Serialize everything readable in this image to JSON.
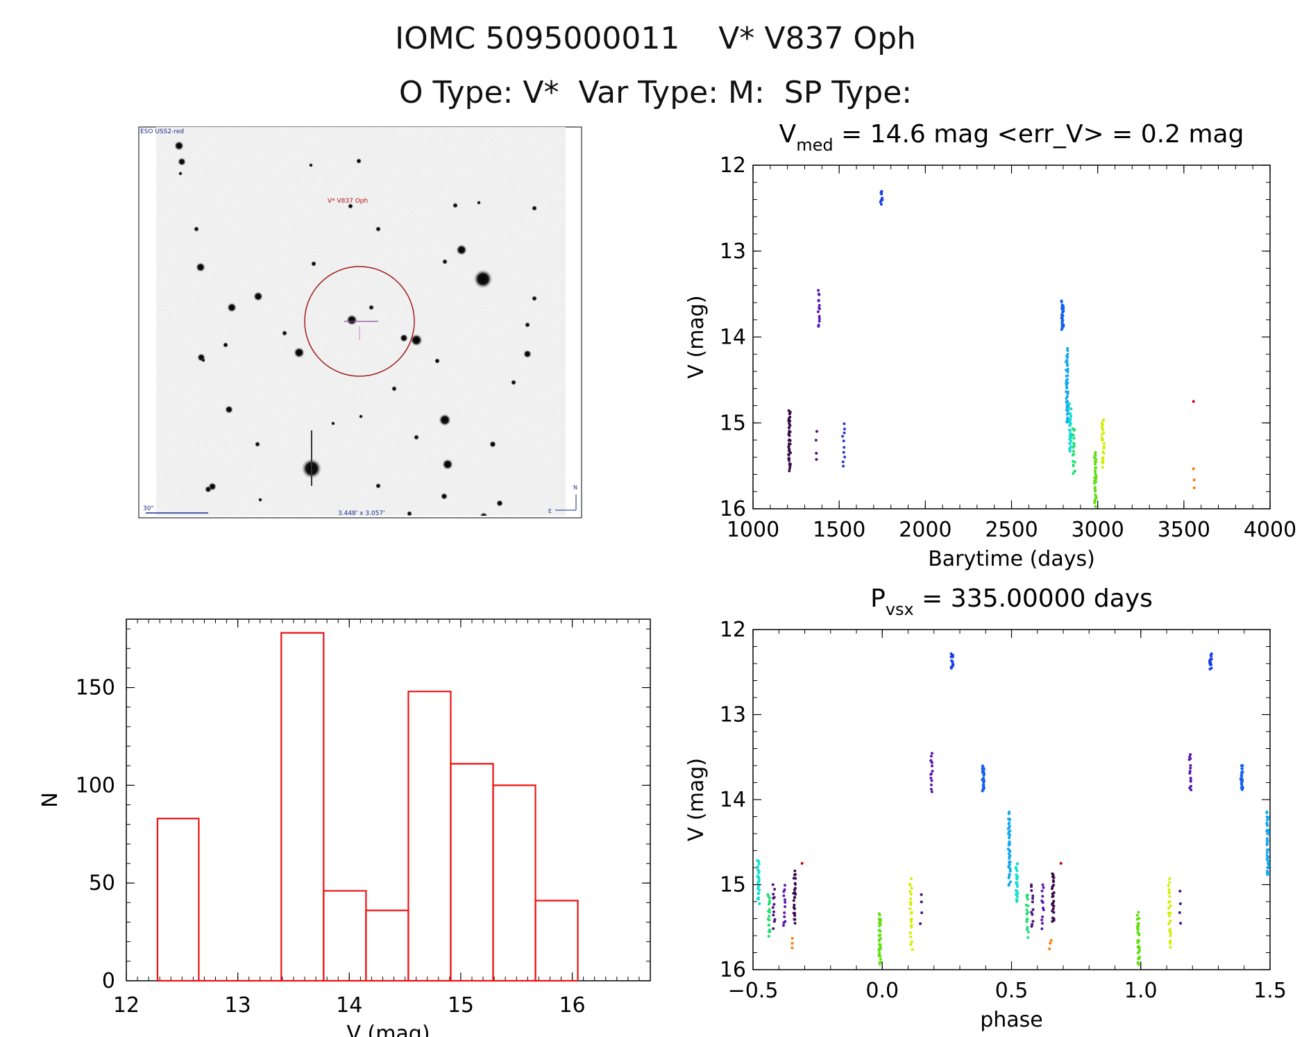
{
  "header": {
    "line1": "IOMC 5095000011    V* V837 Oph",
    "line2": "O Type: V*  Var Type: M:  SP Type:"
  },
  "finder": {
    "survey_label": "ESO USS2-red",
    "object_label": "V* V837 Oph",
    "scale_label": "30\"",
    "fov_label": "3.448' x 3.057'",
    "north_label": "N",
    "east_label": "E"
  },
  "chart_data": [
    {
      "id": "lightcurve",
      "type": "scatter",
      "title": "V_med = 14.6 mag <err_V> = 0.2 mag",
      "title_main": "V",
      "title_sub": "med",
      "title_rest": " = 14.6 mag <err_V> = 0.2 mag",
      "xlabel": "Barytime (days)",
      "ylabel": "V (mag)",
      "xlim": [
        1000,
        4000
      ],
      "ylim": [
        16,
        12
      ],
      "xticks": [
        1000,
        1500,
        2000,
        2500,
        3000,
        3500,
        4000
      ],
      "yticks": [
        12,
        13,
        14,
        15,
        16
      ],
      "groups": [
        {
          "x": 1210,
          "y_min": 14.85,
          "y_max": 15.55,
          "n": 40,
          "color": "#3a0a4a"
        },
        {
          "x": 1365,
          "y_min": 15.1,
          "y_max": 15.45,
          "n": 4,
          "color": "#4a1180"
        },
        {
          "x": 1380,
          "y_min": 13.45,
          "y_max": 13.9,
          "n": 14,
          "color": "#5b1ab0"
        },
        {
          "x": 1525,
          "y_min": 15.0,
          "y_max": 15.5,
          "n": 10,
          "color": "#2a3ad0"
        },
        {
          "x": 1745,
          "y_min": 12.3,
          "y_max": 12.45,
          "n": 12,
          "color": "#1a40e8"
        },
        {
          "x": 2795,
          "y_min": 13.6,
          "y_max": 13.9,
          "n": 30,
          "color": "#1560f0"
        },
        {
          "x": 2820,
          "y_min": 14.15,
          "y_max": 15.0,
          "n": 45,
          "color": "#13a8f0"
        },
        {
          "x": 2840,
          "y_min": 14.8,
          "y_max": 15.35,
          "n": 30,
          "color": "#11e0d0"
        },
        {
          "x": 2860,
          "y_min": 15.05,
          "y_max": 15.6,
          "n": 20,
          "color": "#20e070"
        },
        {
          "x": 2985,
          "y_min": 15.35,
          "y_max": 15.95,
          "n": 35,
          "color": "#60e010"
        },
        {
          "x": 3030,
          "y_min": 14.95,
          "y_max": 15.5,
          "n": 25,
          "color": "#d0f000"
        },
        {
          "x": 3555,
          "y_min": 15.55,
          "y_max": 15.75,
          "n": 3,
          "color": "#ff7a00"
        },
        {
          "x": 3560,
          "y_min": 14.75,
          "y_max": 14.77,
          "n": 1,
          "color": "#d00000"
        }
      ]
    },
    {
      "id": "histogram",
      "type": "bar",
      "xlabel": "V (mag)",
      "ylabel": "N",
      "xlim": [
        12,
        16.7
      ],
      "ylim": [
        0,
        185
      ],
      "xticks": [
        12,
        13,
        14,
        15,
        16
      ],
      "yticks": [
        0,
        50,
        100,
        150
      ],
      "bin_edges": [
        12.28,
        12.65,
        13.02,
        13.39,
        13.77,
        14.15,
        14.53,
        14.91,
        15.29,
        15.67,
        16.05
      ],
      "values": [
        83,
        0,
        0,
        178,
        46,
        36,
        148,
        111,
        100,
        41
      ],
      "color": "#ee1111"
    },
    {
      "id": "phased",
      "type": "scatter",
      "title": "P_vsx = 335.00000 days",
      "title_main": "P",
      "title_sub": "vsx",
      "title_rest": " = 335.00000 days",
      "xlabel": "phase",
      "ylabel": "V (mag)",
      "xlim": [
        -0.5,
        1.5
      ],
      "ylim": [
        16,
        12
      ],
      "xticks": [
        -0.5,
        0.0,
        0.5,
        1.0,
        1.5
      ],
      "xtick_labels": [
        "−0.5",
        "0.0",
        "0.5",
        "1.0",
        "1.5"
      ],
      "yticks": [
        12,
        13,
        14,
        15,
        16
      ],
      "groups": [
        {
          "x": -0.48,
          "y_min": 14.7,
          "y_max": 15.2,
          "n": 25,
          "color": "#11e0d0"
        },
        {
          "x": -0.44,
          "y_min": 15.1,
          "y_max": 15.6,
          "n": 18,
          "color": "#20e070"
        },
        {
          "x": -0.42,
          "y_min": 15.0,
          "y_max": 15.5,
          "n": 12,
          "color": "#4a1180"
        },
        {
          "x": -0.38,
          "y_min": 15.0,
          "y_max": 15.5,
          "n": 12,
          "color": "#5b1ab0"
        },
        {
          "x": -0.35,
          "y_min": 15.65,
          "y_max": 15.75,
          "n": 3,
          "color": "#ff7a00"
        },
        {
          "x": -0.34,
          "y_min": 14.85,
          "y_max": 15.45,
          "n": 25,
          "color": "#3a0a4a"
        },
        {
          "x": -0.31,
          "y_min": 14.75,
          "y_max": 14.8,
          "n": 1,
          "color": "#d00000"
        },
        {
          "x": -0.01,
          "y_min": 15.35,
          "y_max": 15.95,
          "n": 35,
          "color": "#60e010"
        },
        {
          "x": 0.11,
          "y_min": 14.95,
          "y_max": 15.75,
          "n": 25,
          "color": "#d0f000"
        },
        {
          "x": 0.15,
          "y_min": 15.1,
          "y_max": 15.45,
          "n": 4,
          "color": "#4a1180"
        },
        {
          "x": 0.19,
          "y_min": 13.45,
          "y_max": 13.9,
          "n": 14,
          "color": "#5b1ab0"
        },
        {
          "x": 0.27,
          "y_min": 12.3,
          "y_max": 12.45,
          "n": 14,
          "color": "#1a40e8"
        },
        {
          "x": 0.39,
          "y_min": 13.6,
          "y_max": 13.9,
          "n": 30,
          "color": "#1560f0"
        },
        {
          "x": 0.49,
          "y_min": 14.15,
          "y_max": 15.0,
          "n": 45,
          "color": "#13a8f0"
        },
        {
          "x": 0.52,
          "y_min": 14.75,
          "y_max": 15.2,
          "n": 25,
          "color": "#11e0d0"
        },
        {
          "x": 0.56,
          "y_min": 15.1,
          "y_max": 15.6,
          "n": 18,
          "color": "#20e070"
        },
        {
          "x": 0.58,
          "y_min": 15.0,
          "y_max": 15.5,
          "n": 12,
          "color": "#4a1180"
        },
        {
          "x": 0.62,
          "y_min": 15.0,
          "y_max": 15.5,
          "n": 12,
          "color": "#5b1ab0"
        },
        {
          "x": 0.65,
          "y_min": 15.65,
          "y_max": 15.75,
          "n": 3,
          "color": "#ff7a00"
        },
        {
          "x": 0.66,
          "y_min": 14.85,
          "y_max": 15.45,
          "n": 25,
          "color": "#3a0a4a"
        },
        {
          "x": 0.69,
          "y_min": 14.75,
          "y_max": 14.8,
          "n": 1,
          "color": "#d00000"
        },
        {
          "x": 0.99,
          "y_min": 15.35,
          "y_max": 15.95,
          "n": 35,
          "color": "#60e010"
        },
        {
          "x": 1.11,
          "y_min": 14.95,
          "y_max": 15.75,
          "n": 25,
          "color": "#d0f000"
        },
        {
          "x": 1.15,
          "y_min": 15.1,
          "y_max": 15.45,
          "n": 4,
          "color": "#4a1180"
        },
        {
          "x": 1.19,
          "y_min": 13.45,
          "y_max": 13.9,
          "n": 14,
          "color": "#5b1ab0"
        },
        {
          "x": 1.27,
          "y_min": 12.3,
          "y_max": 12.45,
          "n": 14,
          "color": "#1a40e8"
        },
        {
          "x": 1.39,
          "y_min": 13.6,
          "y_max": 13.9,
          "n": 30,
          "color": "#1560f0"
        },
        {
          "x": 1.49,
          "y_min": 14.15,
          "y_max": 14.9,
          "n": 40,
          "color": "#13a8f0"
        }
      ]
    }
  ]
}
